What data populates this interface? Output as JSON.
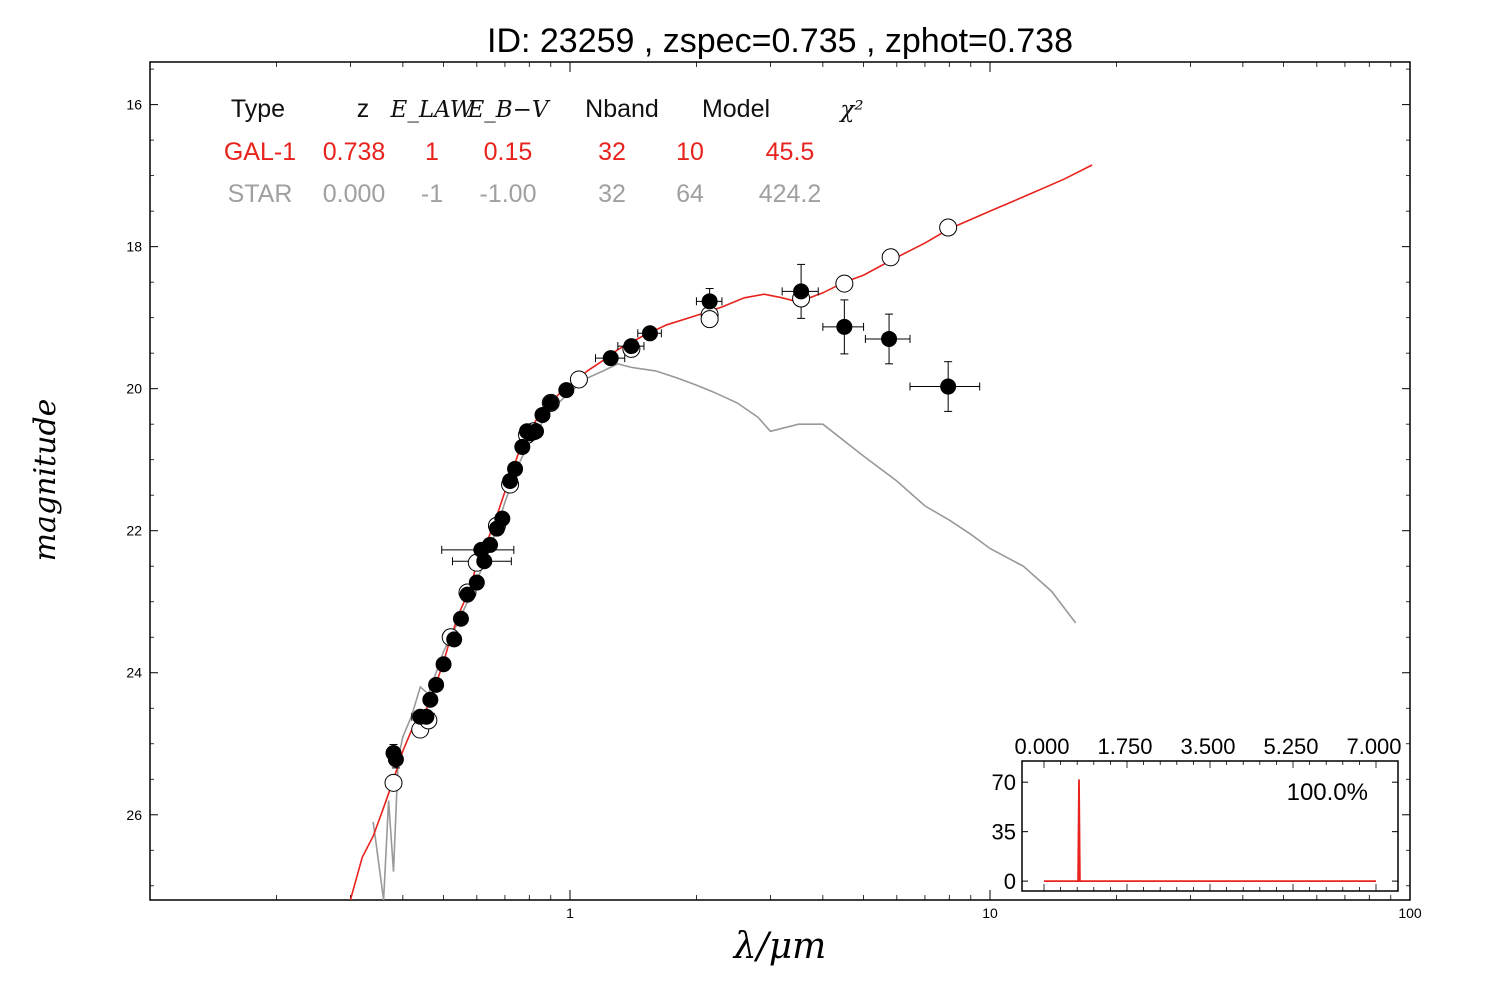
{
  "chart_data": {
    "type": "scatter",
    "title": "ID:  23259 , zspec=0.735 , zphot=0.738",
    "xlabel": "λ/μm",
    "ylabel": "magnitude",
    "x_scale": "log",
    "xlim": [
      0.1,
      100
    ],
    "ylim": [
      27.2,
      15.4
    ],
    "y_inverted": true,
    "x_ticks": [
      "1",
      "10",
      "100"
    ],
    "y_ticks": [
      "16",
      "18",
      "20",
      "22",
      "24",
      "26"
    ],
    "fit_table": {
      "headers": [
        "Type",
        "z",
        "E_LAW",
        "E_B−V",
        "Nband",
        "Model",
        "χ²"
      ],
      "rows": [
        {
          "cells": [
            "GAL-1",
            "0.738",
            "1",
            "0.15",
            "32",
            "10",
            "45.5"
          ],
          "color": "#e8231d"
        },
        {
          "cells": [
            "STAR",
            "0.000",
            "-1",
            "-1.00",
            "32",
            "64",
            "424.2"
          ],
          "color": "#a0a0a0"
        }
      ]
    },
    "observed": [
      {
        "x": 0.38,
        "y": 25.13,
        "xerr": 0.01,
        "yerr": 0.12
      },
      {
        "x": 0.385,
        "y": 25.22,
        "xerr": 0.01,
        "yerr": 0.12
      },
      {
        "x": 0.44,
        "y": 24.62,
        "xerr": 0.02,
        "yerr": 0.08
      },
      {
        "x": 0.455,
        "y": 24.62,
        "xerr": 0.02,
        "yerr": 0.08
      },
      {
        "x": 0.465,
        "y": 24.38,
        "xerr": 0.01,
        "yerr": 0.07
      },
      {
        "x": 0.48,
        "y": 24.17,
        "xerr": 0.01,
        "yerr": 0.06
      },
      {
        "x": 0.5,
        "y": 23.88,
        "xerr": 0.01,
        "yerr": 0.06
      },
      {
        "x": 0.53,
        "y": 23.53,
        "xerr": 0.01,
        "yerr": 0.05
      },
      {
        "x": 0.55,
        "y": 23.24,
        "xerr": 0.01,
        "yerr": 0.05
      },
      {
        "x": 0.57,
        "y": 22.9,
        "xerr": 0.01,
        "yerr": 0.05
      },
      {
        "x": 0.6,
        "y": 22.73,
        "xerr": 0.01,
        "yerr": 0.05
      },
      {
        "x": 0.615,
        "y": 22.27,
        "xerr": 0.12,
        "yerr": 0.05
      },
      {
        "x": 0.625,
        "y": 22.43,
        "xerr": 0.1,
        "yerr": 0.05
      },
      {
        "x": 0.645,
        "y": 22.2,
        "xerr": 0.01,
        "yerr": 0.05
      },
      {
        "x": 0.67,
        "y": 21.97,
        "xerr": 0.01,
        "yerr": 0.04
      },
      {
        "x": 0.69,
        "y": 21.83,
        "xerr": 0.01,
        "yerr": 0.04
      },
      {
        "x": 0.72,
        "y": 21.3,
        "xerr": 0.02,
        "yerr": 0.04
      },
      {
        "x": 0.74,
        "y": 21.13,
        "xerr": 0.02,
        "yerr": 0.04
      },
      {
        "x": 0.77,
        "y": 20.82,
        "xerr": 0.02,
        "yerr": 0.04
      },
      {
        "x": 0.79,
        "y": 20.6,
        "xerr": 0.02,
        "yerr": 0.04
      },
      {
        "x": 0.805,
        "y": 20.63,
        "xerr": 0.02,
        "yerr": 0.04
      },
      {
        "x": 0.83,
        "y": 20.6,
        "xerr": 0.02,
        "yerr": 0.04
      },
      {
        "x": 0.86,
        "y": 20.37,
        "xerr": 0.02,
        "yerr": 0.04
      },
      {
        "x": 0.9,
        "y": 20.2,
        "xerr": 0.02,
        "yerr": 0.04
      },
      {
        "x": 0.98,
        "y": 20.02,
        "xerr": 0.03,
        "yerr": 0.04
      },
      {
        "x": 1.25,
        "y": 19.57,
        "xerr": 0.1,
        "yerr": 0.04
      },
      {
        "x": 1.4,
        "y": 19.4,
        "xerr": 0.1,
        "yerr": 0.04
      },
      {
        "x": 1.55,
        "y": 19.22,
        "xerr": 0.1,
        "yerr": 0.04
      },
      {
        "x": 2.15,
        "y": 18.77,
        "xerr": 0.15,
        "yerr": 0.18
      },
      {
        "x": 3.55,
        "y": 18.63,
        "xerr": 0.35,
        "yerr": 0.38
      },
      {
        "x": 4.5,
        "y": 19.13,
        "xerr": 0.5,
        "yerr": 0.38
      },
      {
        "x": 5.75,
        "y": 19.3,
        "xerr": 0.7,
        "yerr": 0.35
      },
      {
        "x": 7.95,
        "y": 19.97,
        "xerr": 1.5,
        "yerr": 0.35
      }
    ],
    "model_points": [
      {
        "x": 0.38,
        "y": 25.55
      },
      {
        "x": 0.44,
        "y": 24.8
      },
      {
        "x": 0.46,
        "y": 24.67
      },
      {
        "x": 0.52,
        "y": 23.5
      },
      {
        "x": 0.57,
        "y": 22.87
      },
      {
        "x": 0.6,
        "y": 22.45
      },
      {
        "x": 0.67,
        "y": 21.93
      },
      {
        "x": 0.72,
        "y": 21.35
      },
      {
        "x": 0.79,
        "y": 20.65
      },
      {
        "x": 0.82,
        "y": 20.6
      },
      {
        "x": 0.9,
        "y": 20.2
      },
      {
        "x": 1.05,
        "y": 19.87
      },
      {
        "x": 1.4,
        "y": 19.44
      },
      {
        "x": 2.15,
        "y": 18.96
      },
      {
        "x": 2.15,
        "y": 19.02
      },
      {
        "x": 3.55,
        "y": 18.73
      },
      {
        "x": 4.5,
        "y": 18.52
      },
      {
        "x": 5.8,
        "y": 18.15
      },
      {
        "x": 7.95,
        "y": 17.73
      }
    ],
    "series": [
      {
        "name": "GAL-1",
        "color": "#e8231d",
        "x": [
          0.3,
          0.32,
          0.34,
          0.36,
          0.38,
          0.4,
          0.42,
          0.44,
          0.46,
          0.48,
          0.5,
          0.52,
          0.55,
          0.58,
          0.6,
          0.63,
          0.66,
          0.7,
          0.73,
          0.76,
          0.8,
          0.85,
          0.9,
          0.95,
          1.0,
          1.1,
          1.2,
          1.3,
          1.5,
          1.7,
          2.0,
          2.3,
          2.6,
          2.9,
          3.2,
          3.5,
          4.0,
          4.5,
          5.0,
          6.0,
          7.0,
          8.0,
          10.0,
          12.0,
          15.0,
          17.5
        ],
        "y": [
          27.2,
          26.6,
          26.3,
          25.9,
          25.5,
          25.1,
          24.8,
          24.7,
          24.45,
          24.15,
          23.85,
          23.5,
          23.1,
          22.8,
          22.45,
          22.2,
          21.9,
          21.45,
          21.15,
          20.85,
          20.6,
          20.35,
          20.2,
          20.05,
          19.95,
          19.75,
          19.6,
          19.45,
          19.25,
          19.1,
          18.97,
          18.85,
          18.72,
          18.67,
          18.72,
          18.78,
          18.65,
          18.5,
          18.4,
          18.15,
          17.95,
          17.75,
          17.5,
          17.3,
          17.05,
          16.85
        ]
      },
      {
        "name": "STAR",
        "color": "#999999",
        "x": [
          0.34,
          0.36,
          0.37,
          0.38,
          0.39,
          0.4,
          0.42,
          0.44,
          0.46,
          0.48,
          0.5,
          0.52,
          0.55,
          0.57,
          0.6,
          0.63,
          0.65,
          0.7,
          0.75,
          0.8,
          0.9,
          1.0,
          1.1,
          1.2,
          1.3,
          1.4,
          1.6,
          1.8,
          2.0,
          2.2,
          2.5,
          2.8,
          3.0,
          3.5,
          4.0,
          5.0,
          6.0,
          7.0,
          8.0,
          9.0,
          10.0,
          12.0,
          14.0,
          16.0
        ],
        "y": [
          26.1,
          27.2,
          25.8,
          26.8,
          25.2,
          24.9,
          24.6,
          24.2,
          24.3,
          24.0,
          23.7,
          23.5,
          23.2,
          23.0,
          22.7,
          22.4,
          22.2,
          21.6,
          21.1,
          20.75,
          20.3,
          20.05,
          19.85,
          19.75,
          19.65,
          19.7,
          19.75,
          19.85,
          19.95,
          20.05,
          20.2,
          20.4,
          20.6,
          20.5,
          20.5,
          20.95,
          21.3,
          21.65,
          21.85,
          22.05,
          22.25,
          22.5,
          22.85,
          23.3
        ]
      }
    ],
    "inset": {
      "type": "line",
      "x_ticks": [
        "0.000",
        "1.750",
        "3.500",
        "5.250",
        "7.000"
      ],
      "xlim": [
        0,
        7
      ],
      "y_ticks": [
        "0",
        "35",
        "70"
      ],
      "ylim": [
        -7,
        85
      ],
      "annotation": "100.0%",
      "x": [
        0,
        0.7,
        0.72,
        0.738,
        0.756,
        0.78,
        7.0
      ],
      "y": [
        0,
        0,
        0,
        72,
        0,
        0,
        0
      ],
      "color": "#e8231d"
    }
  }
}
